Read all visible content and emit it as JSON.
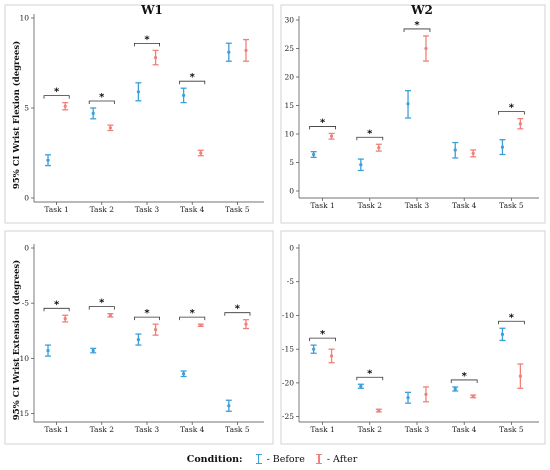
{
  "legend": {
    "title": "Condition:",
    "items": [
      {
        "label": "- Before",
        "color": "#3b9fd8"
      },
      {
        "label": "- After",
        "color": "#f0807a"
      }
    ]
  },
  "chart_data": [
    {
      "type": "errorbar",
      "title": "W1",
      "ylabel": "95% CI Wrist Flexion (degrees)",
      "categories": [
        "Task 1",
        "Task 2",
        "Task 3",
        "Task 4",
        "Task 5"
      ],
      "ylim": [
        0,
        10
      ],
      "yticks": [
        0,
        5,
        10
      ],
      "series": [
        {
          "name": "Before",
          "color": "#3b9fd8",
          "values": [
            2.1,
            4.7,
            5.9,
            5.7,
            8.1
          ],
          "lower": [
            1.8,
            4.4,
            5.4,
            5.3,
            7.6
          ],
          "upper": [
            2.4,
            5.0,
            6.4,
            6.1,
            8.6
          ]
        },
        {
          "name": "After",
          "color": "#f0807a",
          "values": [
            5.1,
            3.9,
            7.8,
            2.5,
            8.2
          ],
          "lower": [
            4.9,
            3.75,
            7.4,
            2.35,
            7.6
          ],
          "upper": [
            5.3,
            4.05,
            8.2,
            2.65,
            8.8
          ]
        }
      ],
      "significance": [
        {
          "task": "Task 1",
          "label": "*"
        },
        {
          "task": "Task 2",
          "label": "*"
        },
        {
          "task": "Task 3",
          "label": "*"
        },
        {
          "task": "Task 4",
          "label": "*"
        }
      ]
    },
    {
      "type": "errorbar",
      "title": "W2",
      "ylabel": "",
      "categories": [
        "Task 1",
        "Task 2",
        "Task 3",
        "Task 4",
        "Task 5"
      ],
      "ylim": [
        0,
        30
      ],
      "yticks": [
        0,
        5,
        10,
        15,
        20,
        25,
        30
      ],
      "series": [
        {
          "name": "Before",
          "color": "#3b9fd8",
          "values": [
            6.4,
            4.6,
            15.3,
            7.2,
            7.7
          ],
          "lower": [
            5.9,
            3.6,
            12.8,
            5.8,
            6.4
          ],
          "upper": [
            6.9,
            5.6,
            17.6,
            8.5,
            9.0
          ]
        },
        {
          "name": "After",
          "color": "#f0807a",
          "values": [
            9.6,
            7.6,
            25.0,
            6.6,
            11.8
          ],
          "lower": [
            9.1,
            7.0,
            22.8,
            6.0,
            10.9
          ],
          "upper": [
            10.1,
            8.2,
            27.2,
            7.2,
            12.7
          ]
        }
      ],
      "significance": [
        {
          "task": "Task 1",
          "label": "*"
        },
        {
          "task": "Task 2",
          "label": "*"
        },
        {
          "task": "Task 3",
          "label": "*"
        },
        {
          "task": "Task 5",
          "label": "*"
        }
      ]
    },
    {
      "type": "errorbar",
      "title": "",
      "ylabel": "95% CI Wrist Extension (degrees)",
      "categories": [
        "Task 1",
        "Task 2",
        "Task 3",
        "Task 4",
        "Task 5"
      ],
      "ylim": [
        -15.5,
        0
      ],
      "yticks": [
        0,
        -5,
        -10,
        -15
      ],
      "series": [
        {
          "name": "Before",
          "color": "#3b9fd8",
          "values": [
            -9.3,
            -9.3,
            -8.3,
            -11.4,
            -14.3
          ],
          "lower": [
            -9.8,
            -9.5,
            -8.8,
            -11.65,
            -14.8
          ],
          "upper": [
            -8.8,
            -9.1,
            -7.8,
            -11.15,
            -13.8
          ]
        },
        {
          "name": "After",
          "color": "#f0807a",
          "values": [
            -6.4,
            -6.1,
            -7.4,
            -7.0,
            -6.9
          ],
          "lower": [
            -6.7,
            -6.25,
            -7.9,
            -7.1,
            -7.3
          ],
          "upper": [
            -6.1,
            -5.95,
            -6.9,
            -6.9,
            -6.5
          ]
        }
      ],
      "significance": [
        {
          "task": "Task 1",
          "label": "*"
        },
        {
          "task": "Task 2",
          "label": "*"
        },
        {
          "task": "Task 3",
          "label": "*"
        },
        {
          "task": "Task 4",
          "label": "*"
        },
        {
          "task": "Task 5",
          "label": "*"
        }
      ]
    },
    {
      "type": "errorbar",
      "title": "",
      "ylabel": "",
      "categories": [
        "Task 1",
        "Task 2",
        "Task 3",
        "Task 4",
        "Task 5"
      ],
      "ylim": [
        -25.5,
        0
      ],
      "yticks": [
        0,
        -5,
        -10,
        -15,
        -20,
        -25
      ],
      "series": [
        {
          "name": "Before",
          "color": "#3b9fd8",
          "values": [
            -15.0,
            -20.5,
            -22.2,
            -20.9,
            -12.8
          ],
          "lower": [
            -15.6,
            -20.8,
            -23.0,
            -21.2,
            -13.7
          ],
          "upper": [
            -14.4,
            -20.2,
            -21.4,
            -20.6,
            -11.9
          ]
        },
        {
          "name": "After",
          "color": "#f0807a",
          "values": [
            -16.0,
            -24.1,
            -21.7,
            -22.0,
            -19.0
          ],
          "lower": [
            -17.0,
            -24.3,
            -22.8,
            -22.2,
            -20.8
          ],
          "upper": [
            -15.0,
            -23.9,
            -20.6,
            -21.8,
            -17.2
          ]
        }
      ],
      "significance": [
        {
          "task": "Task 1",
          "label": "*"
        },
        {
          "task": "Task 2",
          "label": "*"
        },
        {
          "task": "Task 4",
          "label": "*"
        },
        {
          "task": "Task 5",
          "label": "*"
        }
      ]
    }
  ]
}
